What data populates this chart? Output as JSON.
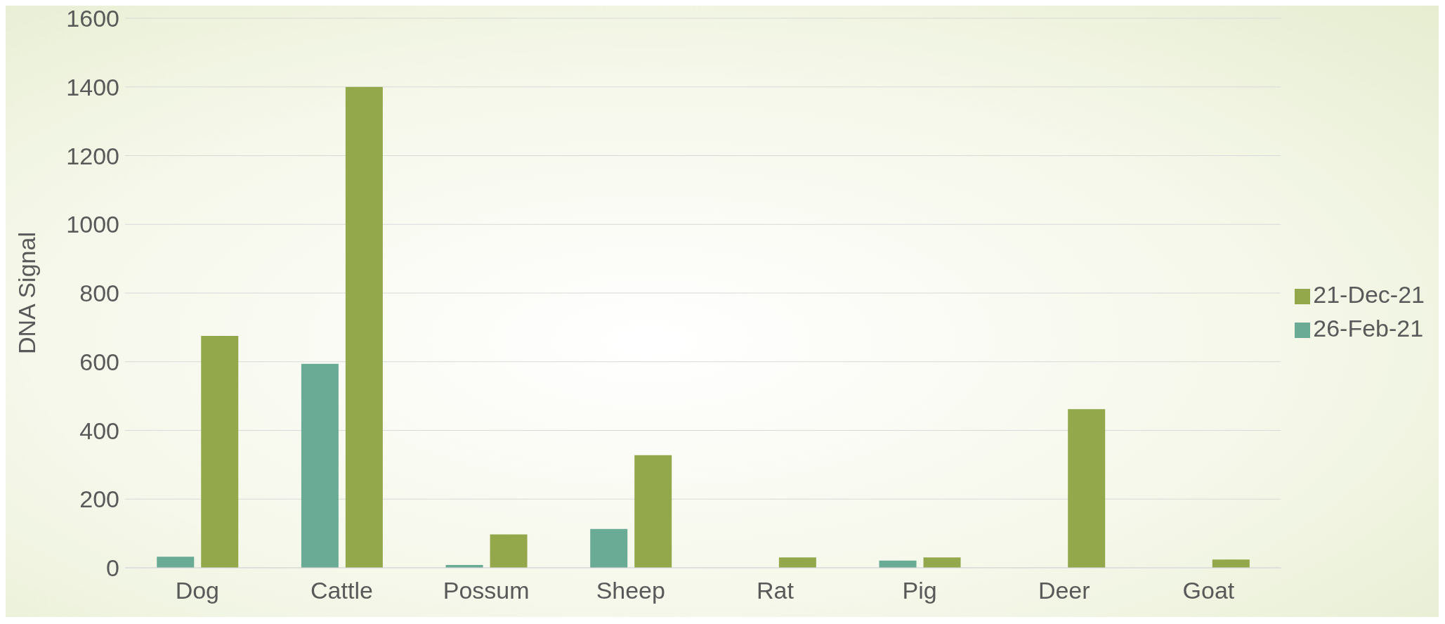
{
  "chart_data": {
    "type": "bar",
    "ylabel": "DNA Signal",
    "categories": [
      "Dog",
      "Cattle",
      "Possum",
      "Sheep",
      "Rat",
      "Pig",
      "Deer",
      "Goat"
    ],
    "series": [
      {
        "name": "26-Feb-21",
        "color": "#69ab94",
        "values": [
          32,
          594,
          8,
          113,
          0,
          21,
          0,
          0
        ]
      },
      {
        "name": "21-Dec-21",
        "color": "#93a84b",
        "values": [
          675,
          1400,
          97,
          328,
          30,
          30,
          462,
          24
        ]
      }
    ],
    "ylim": [
      0,
      1600
    ],
    "yticks": [
      0,
      200,
      400,
      600,
      800,
      1000,
      1200,
      1400,
      1600
    ],
    "grid": "y",
    "legend": "right"
  }
}
